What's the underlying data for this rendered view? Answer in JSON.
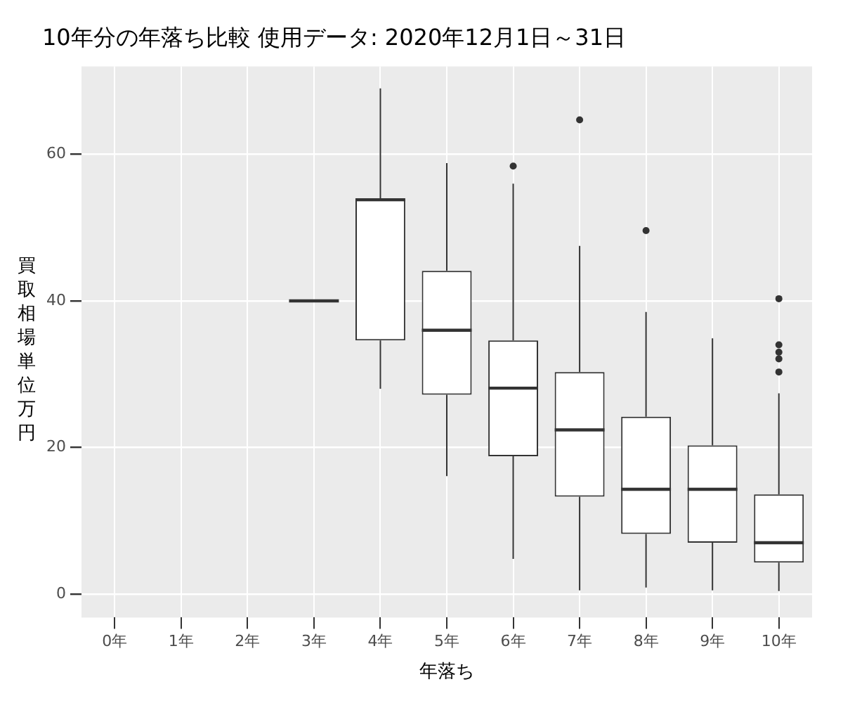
{
  "chart_data": {
    "type": "box",
    "title": "10年分の年落ち比較 使用データ: 2020年12月1日～31日",
    "xlabel": "年落ち",
    "ylabel": "買取相場単位万円",
    "categories": [
      "0年",
      "1年",
      "2年",
      "3年",
      "4年",
      "5年",
      "6年",
      "7年",
      "8年",
      "9年",
      "10年"
    ],
    "boxes": [
      null,
      null,
      null,
      {
        "low": 40,
        "q1": 40,
        "median": 40,
        "q3": 40,
        "high": 40
      },
      {
        "low": 28,
        "q1": 34.6,
        "median": 53.8,
        "q3": 53.8,
        "high": 69
      },
      {
        "low": 16.1,
        "q1": 27.2,
        "median": 36,
        "q3": 44.1,
        "high": 58.8
      },
      {
        "low": 4.8,
        "q1": 18.8,
        "median": 28.1,
        "q3": 34.6,
        "high": 56,
        "outliers": [
          58.4
        ]
      },
      {
        "low": 0.5,
        "q1": 13.3,
        "median": 22.4,
        "q3": 30.3,
        "high": 47.5,
        "outliers": [
          64.7
        ]
      },
      {
        "low": 0.9,
        "q1": 8.2,
        "median": 14.3,
        "q3": 24.2,
        "high": 38.5,
        "outliers": [
          49.6
        ]
      },
      {
        "low": 0.5,
        "q1": 7,
        "median": 14.3,
        "q3": 20.3,
        "high": 34.9
      },
      {
        "low": 0.4,
        "q1": 4.3,
        "median": 7,
        "q3": 13.6,
        "high": 27.4,
        "outliers": [
          40.3,
          34,
          33,
          32.1,
          30.3
        ]
      }
    ],
    "ylim": [
      -3.2,
      72
    ],
    "yticks": [
      0,
      20,
      40,
      60
    ],
    "grid": true
  }
}
